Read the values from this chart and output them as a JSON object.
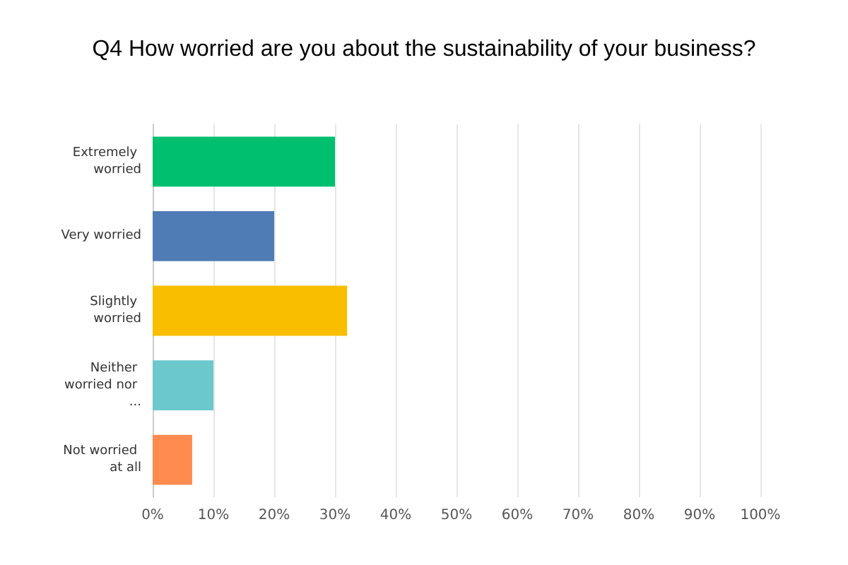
{
  "chart_data": {
    "type": "bar",
    "orientation": "horizontal",
    "title": "Q4 How worried are you about the sustainability of your business?",
    "categories": [
      "Extremely worried",
      "Very worried",
      "Slightly worried",
      "Neither worried nor ...",
      "Not worried at all"
    ],
    "values": [
      30,
      20,
      32,
      10,
      6.5
    ],
    "colors": [
      "#00bf6f",
      "#507cb6",
      "#f9be00",
      "#6bc8cd",
      "#ff8b4f"
    ],
    "xlim": [
      0,
      100
    ],
    "xticks": [
      {
        "value": 0,
        "label": "0%"
      },
      {
        "value": 10,
        "label": "10%"
      },
      {
        "value": 20,
        "label": "20%"
      },
      {
        "value": 30,
        "label": "30%"
      },
      {
        "value": 40,
        "label": "40%"
      },
      {
        "value": 50,
        "label": "50%"
      },
      {
        "value": 60,
        "label": "60%"
      },
      {
        "value": 70,
        "label": "70%"
      },
      {
        "value": 80,
        "label": "80%"
      },
      {
        "value": 90,
        "label": "90%"
      },
      {
        "value": 100,
        "label": "100%"
      }
    ],
    "grid": "x"
  }
}
